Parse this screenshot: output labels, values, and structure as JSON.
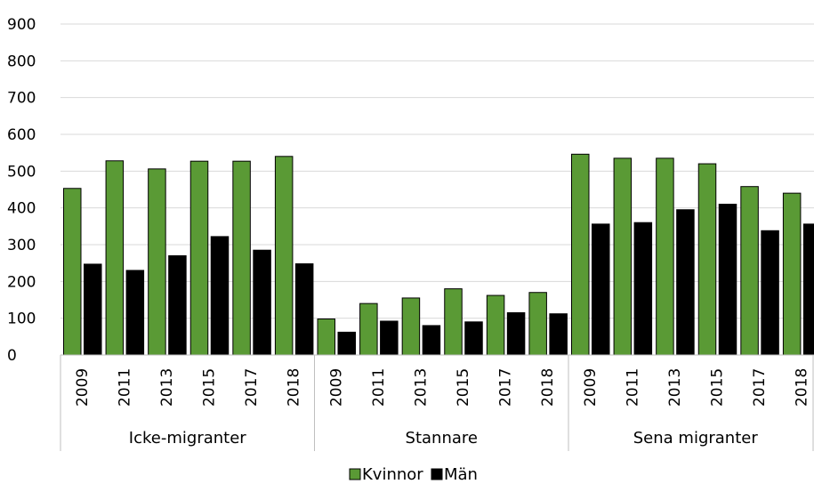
{
  "chart_data": {
    "type": "bar",
    "title": "",
    "xlabel": "",
    "ylabel": "",
    "ylim": [
      0,
      900
    ],
    "yticks": [
      0,
      100,
      200,
      300,
      400,
      500,
      600,
      700,
      800,
      900
    ],
    "grid": true,
    "legend_position": "bottom",
    "groups": [
      {
        "name": "Icke-migranter",
        "years": [
          "2009",
          "2011",
          "2013",
          "2015",
          "2017",
          "2018"
        ]
      },
      {
        "name": "Stannare",
        "years": [
          "2009",
          "2011",
          "2013",
          "2015",
          "2017",
          "2018"
        ]
      },
      {
        "name": "Sena migranter",
        "years": [
          "2009",
          "2011",
          "2013",
          "2015",
          "2017",
          "2018"
        ]
      }
    ],
    "series": [
      {
        "name": "Kvinnor",
        "color": "#5a9a35",
        "values": [
          453,
          528,
          506,
          527,
          527,
          540,
          98,
          140,
          155,
          180,
          162,
          170,
          546,
          535,
          535,
          520,
          458,
          440
        ]
      },
      {
        "name": "Män",
        "color": "#000000",
        "values": [
          247,
          230,
          270,
          322,
          285,
          248,
          62,
          92,
          80,
          90,
          115,
          112,
          356,
          360,
          395,
          410,
          338,
          356
        ]
      }
    ]
  }
}
